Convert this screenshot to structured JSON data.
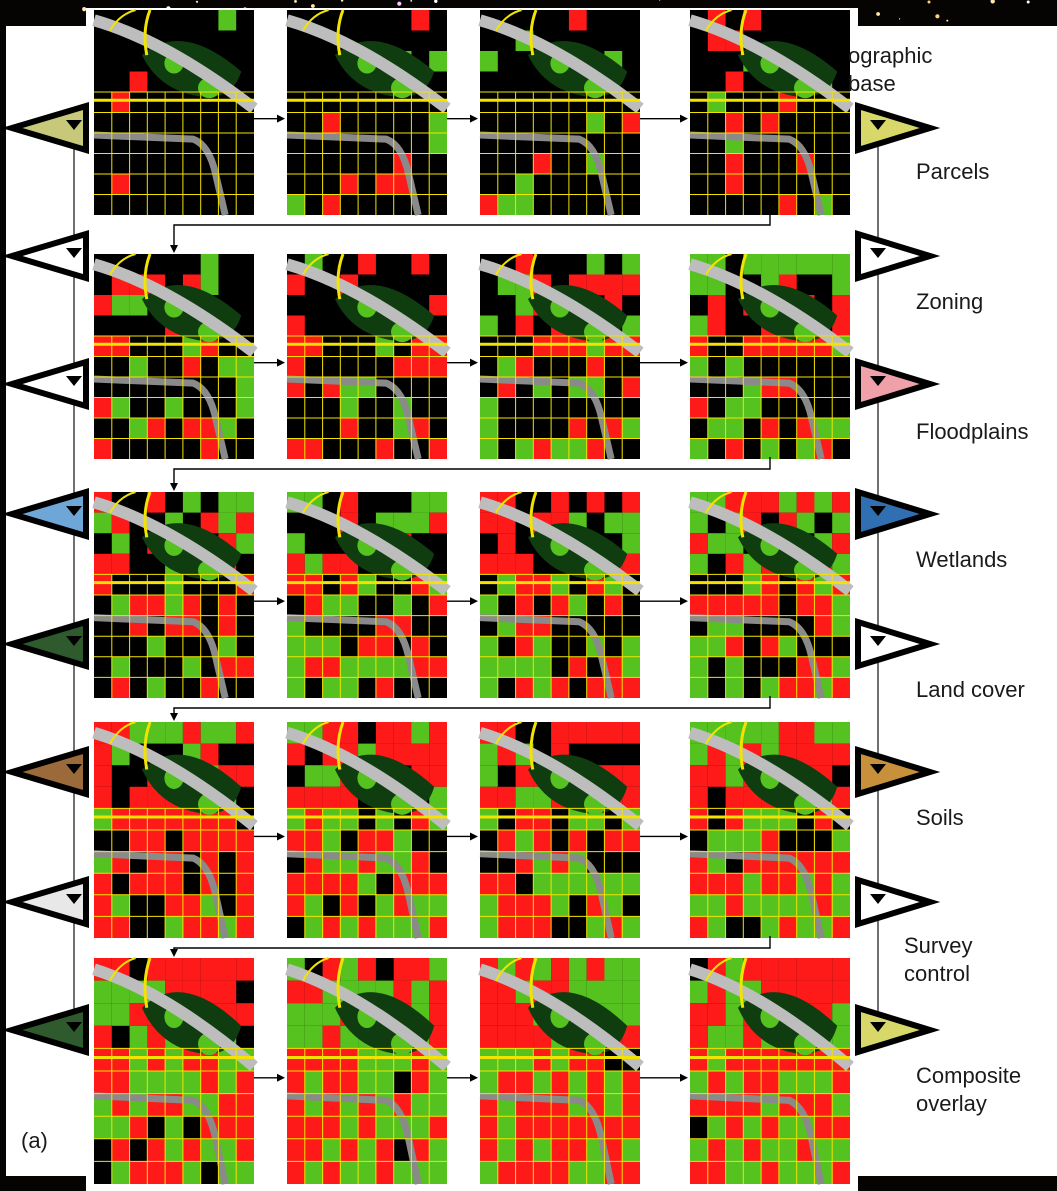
{
  "labels": {
    "topographic_base": "ographic\nbase",
    "parcels": "Parcels",
    "zoning": "Zoning",
    "floodplains": "Floodplains",
    "wetlands": "Wetlands",
    "land_cover": "Land cover",
    "soils": "Soils",
    "survey_control": "Survey\ncontrol",
    "composite_overlay": "Composite\noverlay",
    "panel_letter": "(a)"
  },
  "colors": {
    "unsuitable": "#ff1a1a",
    "suitable": "#55c21f",
    "undetermined": "#000000",
    "parcel_lines": "#f2e400",
    "river": "#bdbdbd",
    "forest": "#0f3d10"
  },
  "grid": {
    "rows": 6,
    "cols": 4
  },
  "coverage_per_step": [
    0.1,
    0.14,
    0.18,
    0.22,
    0.3,
    0.36,
    0.42,
    0.48,
    0.55,
    0.59,
    0.63,
    0.67,
    0.73,
    0.77,
    0.81,
    0.85,
    0.88,
    0.91,
    0.94,
    0.97,
    1.0,
    1.0,
    1.0,
    1.0
  ],
  "left_layer_colors": [
    "#c8c87a",
    "#ffffff",
    "#ffffff",
    "#6fa6d8",
    "#2e5a2e",
    "#9b6a3a",
    "#e8e8e8",
    "#2e5a2e"
  ],
  "right_layer_colors": [
    "#d8d86a",
    "#ffffff",
    "#f0a0a8",
    "#2f6fb2",
    "#ffffff",
    "#c8903a",
    "#ffffff",
    "#d8d86a"
  ]
}
